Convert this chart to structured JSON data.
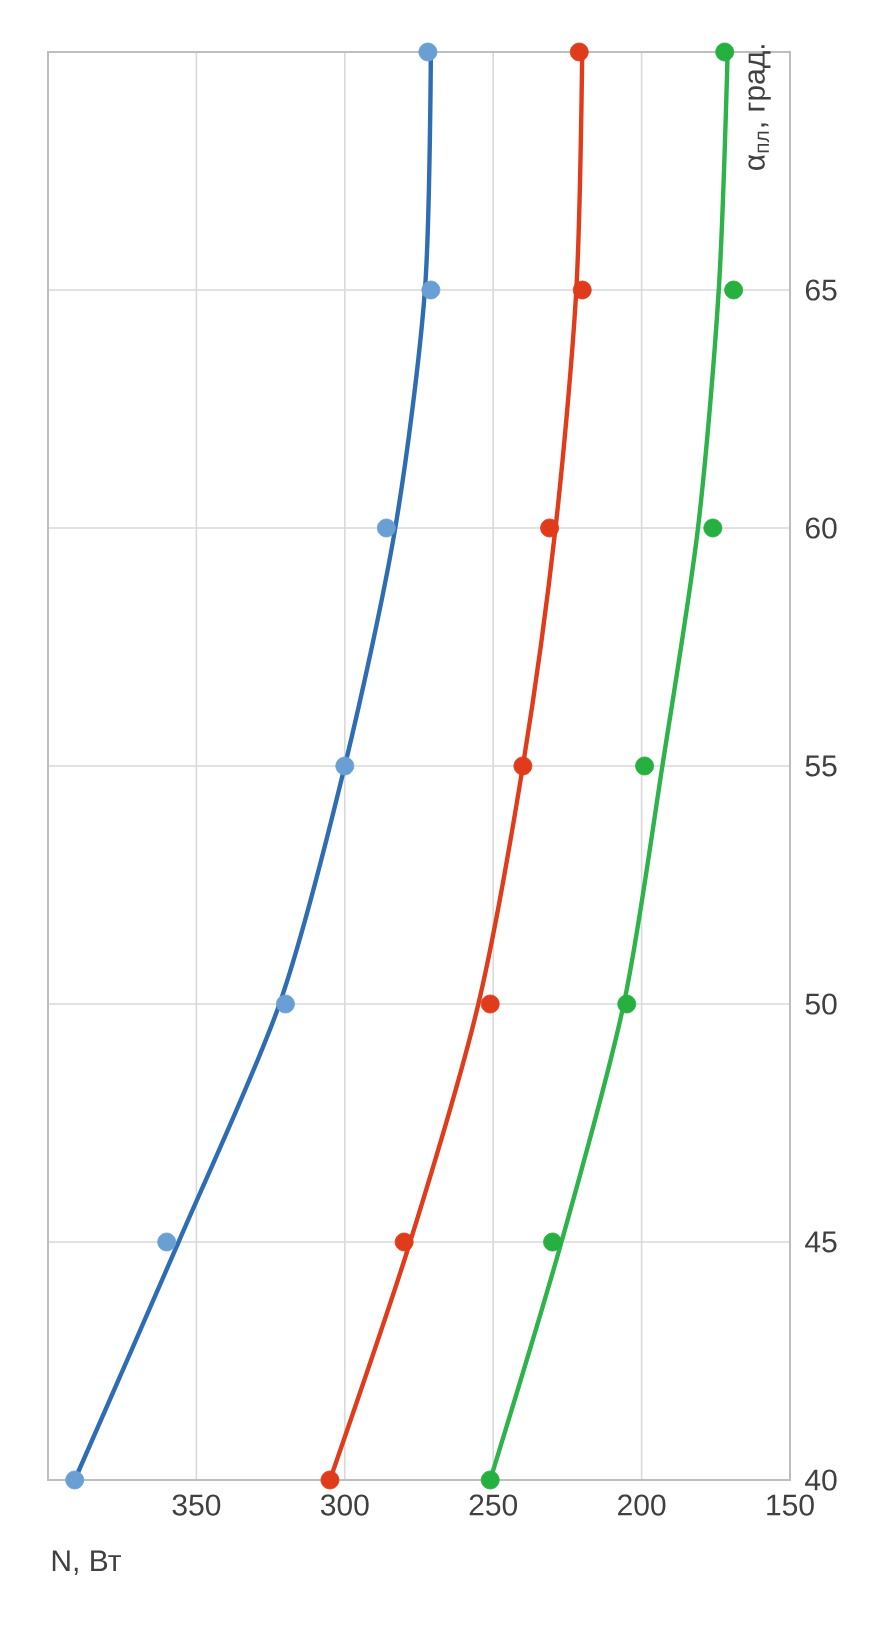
{
  "chart_data": {
    "type": "line",
    "xlabel": "N, Вт",
    "ylabel": "α$_{пл}$, град.",
    "xlim": [
      400,
      150
    ],
    "ylim": [
      40,
      70
    ],
    "xticks": [
      350,
      300,
      250,
      200,
      150
    ],
    "yticks": [
      40,
      45,
      50,
      55,
      60,
      65
    ],
    "grid": true,
    "series": [
      {
        "type": "scatter",
        "marker": "circle",
        "color": "#6a9fd4",
        "x": [
          391,
          360,
          320,
          300,
          286,
          271,
          272
        ],
        "values": [
          40,
          45,
          50,
          55,
          60,
          65,
          70
        ]
      },
      {
        "marker": "none",
        "color": "#2e6db4",
        "x": [
          391,
          356,
          322,
          300,
          283,
          273,
          271
        ],
        "values": [
          40,
          45,
          50,
          55,
          60,
          65,
          70
        ]
      },
      {
        "type": "scatter",
        "marker": "circle",
        "color": "#e03c1c",
        "x": [
          305,
          280,
          251,
          240,
          231,
          220,
          221
        ],
        "values": [
          40,
          45,
          50,
          55,
          60,
          65,
          70
        ]
      },
      {
        "marker": "none",
        "color": "#e03c1c",
        "x": [
          305,
          278,
          255,
          240,
          229,
          222,
          220
        ],
        "values": [
          40,
          45,
          50,
          55,
          60,
          65,
          70
        ]
      },
      {
        "type": "scatter",
        "marker": "circle",
        "color": "#26b040",
        "x": [
          251,
          230,
          205,
          199,
          176,
          169,
          172
        ],
        "values": [
          40,
          45,
          50,
          55,
          60,
          65,
          70
        ]
      },
      {
        "marker": "none",
        "color": "#2db34a",
        "x": [
          251,
          227,
          206,
          193,
          181,
          174,
          171
        ],
        "values": [
          40,
          45,
          50,
          55,
          60,
          65,
          70
        ]
      }
    ]
  }
}
